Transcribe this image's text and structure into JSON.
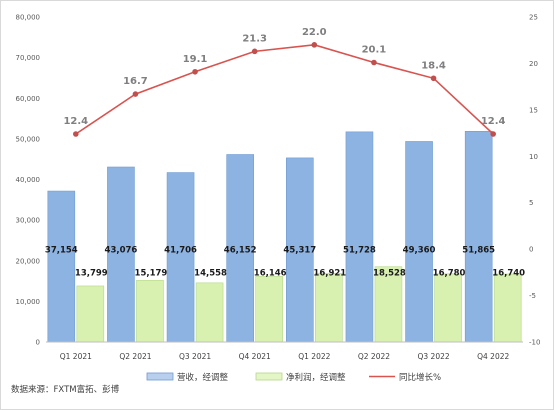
{
  "chart_data": {
    "type": "bar",
    "categories": [
      "Q1 2021",
      "Q2 2021",
      "Q3 2021",
      "Q4 2021",
      "Q1 2022",
      "Q2 2022",
      "Q3 2022",
      "Q4 2022"
    ],
    "series": [
      {
        "name": "营收，经调整",
        "type": "bar",
        "axis": "left",
        "color": "#8db3e2",
        "values": [
          37154,
          43076,
          41706,
          46152,
          45317,
          51728,
          49360,
          51865
        ]
      },
      {
        "name": "净利润，经调整",
        "type": "bar",
        "axis": "left",
        "color": "#d8f0b0",
        "values": [
          13799,
          15179,
          14558,
          16146,
          16921,
          18528,
          16780,
          16740
        ]
      },
      {
        "name": "同比增长%",
        "type": "line",
        "axis": "right",
        "color": "#d9534f",
        "values": [
          12.4,
          16.7,
          19.1,
          21.3,
          22.0,
          20.1,
          18.4,
          12.4
        ]
      }
    ],
    "ylim_left": [
      0,
      80000
    ],
    "yticks_left": [
      "0",
      "10,000",
      "20,000",
      "30,000",
      "40,000",
      "50,000",
      "60,000",
      "70,000",
      "80,000"
    ],
    "ylim_right": [
      -10,
      25
    ],
    "yticks_right": [
      "-10",
      "-5",
      "0",
      "5",
      "10",
      "15",
      "20",
      "25"
    ],
    "grid": false,
    "legend_position": "bottom"
  },
  "source_note": "数据来源：FXTM富拓、彭博"
}
